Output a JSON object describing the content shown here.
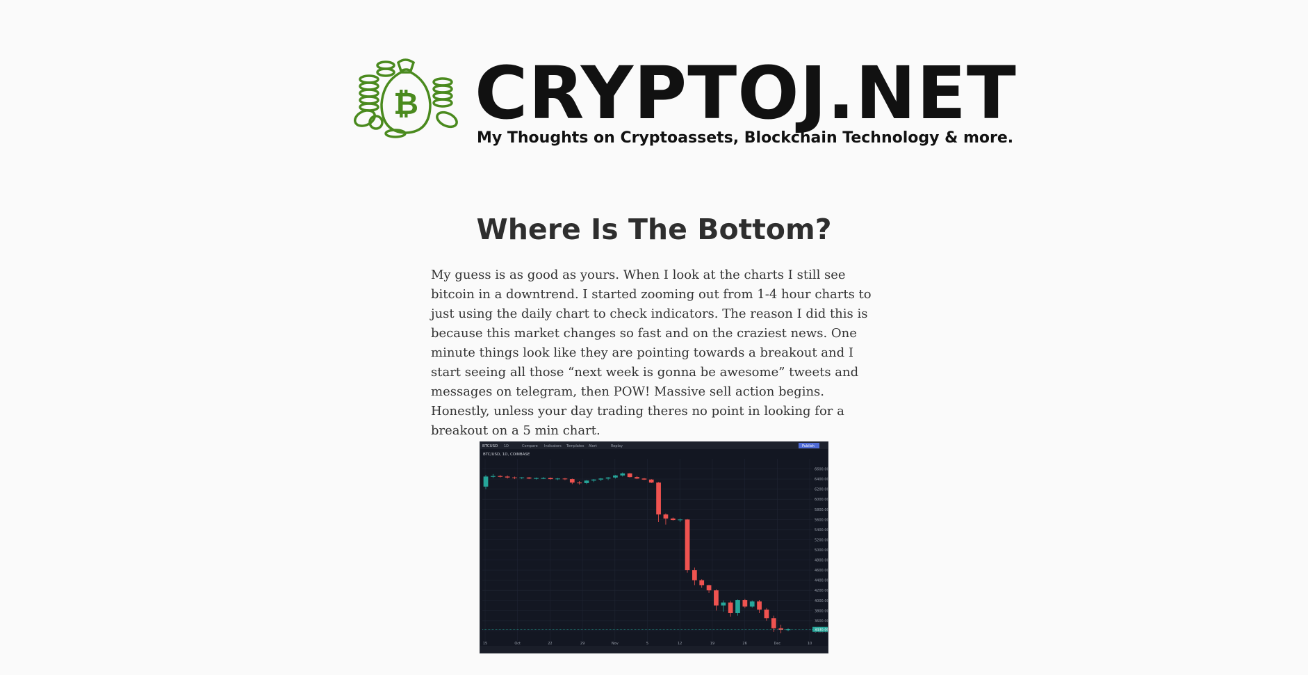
{
  "site": {
    "title": "CRYPTOJ.NET",
    "tagline": "My Thoughts on Cryptoassets, Blockchain Technology & more.",
    "logo_icon": "bitcoin-money-bag-icon",
    "logo_color": "#4a8a1e"
  },
  "post": {
    "title": "Where Is The Bottom?",
    "body": "My guess is as good as yours. When I look at the charts I still see bitcoin in a downtrend. I started zooming out from 1-4 hour charts to just using the daily chart to check indicators. The reason I did this is because this market changes so fast and on the craziest news. One minute things look like they are pointing towards a breakout and I start seeing all those “next week is gonna be awesome” tweets and messages on telegram, then POW! Massive sell action begins. Honestly, unless your day trading theres no point in looking for a breakout on a 5 min chart."
  },
  "chart_image": {
    "toolbar_symbol": "BTCUSD",
    "toolbar_interval": "1D",
    "toolbar_items": [
      "Compare",
      "Indicators",
      "Templates",
      "Alert",
      "Replay"
    ],
    "publish_label": "Publish",
    "legend": "BTC/USD, 1D, COINBASE",
    "x_labels": [
      "15",
      "Oct",
      "22",
      "29",
      "Nov",
      "5",
      "12",
      "19",
      "26",
      "Dec",
      "10"
    ],
    "colors": {
      "bg": "#131722",
      "up": "#26a69a",
      "down": "#ef5350",
      "grid": "#1f2433",
      "last_price": "#26a69a"
    }
  },
  "chart_data": {
    "type": "candlestick",
    "title": "",
    "xlabel": "",
    "ylabel": "",
    "ylim": [
      3200,
      6800
    ],
    "series": [
      {
        "ohlc": [
          [
            6250,
            6480,
            6200,
            6450
          ],
          [
            6450,
            6500,
            6420,
            6460
          ],
          [
            6460,
            6480,
            6430,
            6450
          ],
          [
            6450,
            6470,
            6410,
            6430
          ],
          [
            6430,
            6450,
            6400,
            6420
          ],
          [
            6420,
            6440,
            6400,
            6430
          ],
          [
            6430,
            6440,
            6400,
            6410
          ],
          [
            6410,
            6430,
            6390,
            6420
          ],
          [
            6420,
            6440,
            6400,
            6420
          ],
          [
            6420,
            6430,
            6390,
            6400
          ],
          [
            6400,
            6420,
            6380,
            6410
          ],
          [
            6410,
            6420,
            6380,
            6400
          ],
          [
            6400,
            6410,
            6300,
            6330
          ],
          [
            6330,
            6360,
            6290,
            6320
          ],
          [
            6320,
            6380,
            6300,
            6370
          ],
          [
            6370,
            6400,
            6340,
            6390
          ],
          [
            6390,
            6420,
            6360,
            6410
          ],
          [
            6410,
            6440,
            6380,
            6430
          ],
          [
            6430,
            6480,
            6410,
            6470
          ],
          [
            6470,
            6530,
            6450,
            6510
          ],
          [
            6510,
            6520,
            6430,
            6440
          ],
          [
            6440,
            6460,
            6400,
            6410
          ],
          [
            6410,
            6420,
            6380,
            6390
          ],
          [
            6390,
            6400,
            6320,
            6330
          ],
          [
            6330,
            6340,
            5550,
            5700
          ],
          [
            5700,
            5720,
            5500,
            5620
          ],
          [
            5620,
            5640,
            5580,
            5590
          ],
          [
            5590,
            5620,
            5550,
            5600
          ],
          [
            5600,
            5610,
            4550,
            4600
          ],
          [
            4600,
            4650,
            4300,
            4400
          ],
          [
            4400,
            4420,
            4250,
            4300
          ],
          [
            4300,
            4310,
            4150,
            4200
          ],
          [
            4200,
            4220,
            3800,
            3900
          ],
          [
            3900,
            4000,
            3780,
            3960
          ],
          [
            3960,
            3990,
            3680,
            3750
          ],
          [
            3750,
            4020,
            3700,
            4010
          ],
          [
            4010,
            4030,
            3850,
            3880
          ],
          [
            3880,
            4000,
            3860,
            3980
          ],
          [
            3980,
            4010,
            3750,
            3820
          ],
          [
            3820,
            3850,
            3600,
            3650
          ],
          [
            3650,
            3700,
            3380,
            3450
          ],
          [
            3450,
            3520,
            3350,
            3420
          ],
          [
            3420,
            3450,
            3390,
            3430
          ]
        ]
      }
    ]
  }
}
